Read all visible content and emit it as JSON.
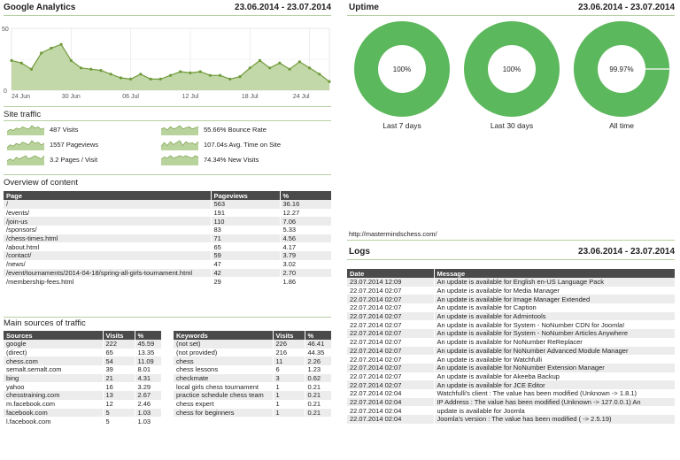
{
  "analytics": {
    "title": "Google Analytics",
    "date_range": "23.06.2014 - 23.07.2014",
    "chart_data": {
      "type": "area",
      "y_ticks": [
        "50",
        "0"
      ],
      "ylim": [
        0,
        50
      ],
      "x_tick_labels": [
        "24 Jun",
        "30 Jun",
        "06 Jul",
        "12 Jul",
        "18 Jul",
        "24 Jul"
      ],
      "series": [
        {
          "values": [
            24,
            22,
            17,
            30,
            34,
            37,
            24,
            18,
            17,
            16,
            13,
            10,
            9,
            13,
            9,
            9,
            12,
            15,
            14,
            15,
            12,
            12,
            9,
            11,
            18,
            24,
            18,
            22,
            17,
            23,
            18,
            13,
            7
          ]
        }
      ]
    },
    "section_site_traffic": "Site traffic",
    "stats": [
      {
        "label": "487 Visits",
        "spark": [
          3,
          5,
          4,
          6,
          5,
          7,
          6,
          5,
          8,
          6,
          7,
          5,
          6
        ]
      },
      {
        "label": "55.66% Bounce Rate",
        "spark": [
          6,
          7,
          5,
          8,
          6,
          7,
          9,
          6,
          7,
          8,
          6,
          7,
          8
        ]
      },
      {
        "label": "1557 Pageviews",
        "spark": [
          2,
          4,
          3,
          5,
          4,
          6,
          5,
          4,
          7,
          5,
          6,
          4,
          5
        ]
      },
      {
        "label": "107.04s Avg. Time on Site",
        "spark": [
          4,
          8,
          5,
          9,
          6,
          8,
          10,
          5,
          9,
          7,
          8,
          6,
          9
        ]
      },
      {
        "label": "3.2 Pages / Visit",
        "spark": [
          3,
          4,
          3,
          5,
          4,
          5,
          6,
          4,
          5,
          6,
          5,
          4,
          6
        ]
      },
      {
        "label": "74.34% New Visits",
        "spark": [
          5,
          7,
          6,
          8,
          6,
          7,
          8,
          7,
          8,
          7,
          6,
          8,
          7
        ]
      }
    ],
    "section_overview": "Overview of content",
    "content_table": {
      "headers": [
        "Page",
        "Pageviews",
        "%"
      ],
      "rows": [
        [
          "/",
          "563",
          "36.16"
        ],
        [
          "/events/",
          "191",
          "12.27"
        ],
        [
          "/join-us",
          "110",
          "7.06"
        ],
        [
          "/sponsors/",
          "83",
          "5.33"
        ],
        [
          "/chess-times.html",
          "71",
          "4.56"
        ],
        [
          "/about.html",
          "65",
          "4.17"
        ],
        [
          "/contact/",
          "59",
          "3.79"
        ],
        [
          "/news/",
          "47",
          "3.02"
        ],
        [
          "/event/tournaments/2014-04-18/spring-all-girls-tournament.html",
          "42",
          "2.70"
        ],
        [
          "/membership-fees.html",
          "29",
          "1.86"
        ]
      ]
    },
    "section_sources": "Main sources of traffic",
    "sources_table": {
      "headers": [
        "Sources",
        "Visits",
        "%"
      ],
      "rows": [
        [
          "google",
          "222",
          "45.59"
        ],
        [
          "(direct)",
          "65",
          "13.35"
        ],
        [
          "chess.com",
          "54",
          "11.09"
        ],
        [
          "semalt.semalt.com",
          "39",
          "8.01"
        ],
        [
          "bing",
          "21",
          "4.31"
        ],
        [
          "yahoo",
          "16",
          "3.29"
        ],
        [
          "chesstraining.com",
          "13",
          "2.67"
        ],
        [
          "m.facebook.com",
          "12",
          "2.46"
        ],
        [
          "facebook.com",
          "5",
          "1.03"
        ],
        [
          "l.facebook.com",
          "5",
          "1.03"
        ]
      ]
    },
    "keywords_table": {
      "headers": [
        "Keywords",
        "Visits",
        "%"
      ],
      "rows": [
        [
          "(not set)",
          "226",
          "46.41"
        ],
        [
          "(not provided)",
          "216",
          "44.35"
        ],
        [
          "chess",
          "11",
          "2.26"
        ],
        [
          "chess lessons",
          "6",
          "1.23"
        ],
        [
          "checkmate",
          "3",
          "0.62"
        ],
        [
          "local girls chess tournament",
          "1",
          "0.21"
        ],
        [
          "practice schedule chess team",
          "1",
          "0.21"
        ],
        [
          "chess expert",
          "1",
          "0.21"
        ],
        [
          "chess for beginners",
          "1",
          "0.21"
        ]
      ]
    }
  },
  "uptime": {
    "title": "Uptime",
    "date_range": "23.06.2014 - 23.07.2014",
    "colors": {
      "up": "#5cb85c",
      "down": "#ffffff"
    },
    "chart_data": {
      "type": "pie",
      "charts": [
        {
          "value": 100,
          "label": "100%",
          "caption": "Last 7 days"
        },
        {
          "value": 100,
          "label": "100%",
          "caption": "Last 30 days"
        },
        {
          "value": 99.97,
          "label": "99.97%",
          "caption": "All time"
        }
      ]
    },
    "url": "http://mastermindschess.com/"
  },
  "logs": {
    "title": "Logs",
    "date_range": "23.06.2014 - 23.07.2014",
    "headers": [
      "Date",
      "Message"
    ],
    "rows": [
      [
        "23.07.2014 12:09",
        "An update is available for English en-US Language Pack"
      ],
      [
        "22.07.2014 02:07",
        "An update is available for Media Manager"
      ],
      [
        "22.07.2014 02:07",
        "An update is available for Image Manager Extended"
      ],
      [
        "22.07.2014 02:07",
        "An update is available for Caption"
      ],
      [
        "22.07.2014 02:07",
        "An update is available for Admintools"
      ],
      [
        "22.07.2014 02:07",
        "An update is available for System - NoNumber CDN for Joomla!"
      ],
      [
        "22.07.2014 02:07",
        "An update is available for System - NoNumber Articles Anywhere"
      ],
      [
        "22.07.2014 02:07",
        "An update is available for NoNumber ReReplacer"
      ],
      [
        "22.07.2014 02:07",
        "An update is available for NoNumber Advanced Module Manager"
      ],
      [
        "22.07.2014 02:07",
        "An update is available for Watchfulli"
      ],
      [
        "22.07.2014 02:07",
        "An update is available for NoNumber Extension Manager"
      ],
      [
        "22.07.2014 02:07",
        "An update is available for Akeeba Backup"
      ],
      [
        "22.07.2014 02:07",
        "An update is available for JCE Editor"
      ],
      [
        "22.07.2014 02:04",
        "Watchfulli's client : The value has been modified (Unknown -> 1.8.1)"
      ],
      [
        "22.07.2014 02:04",
        "IP Address : The value has been modified (Unknown -> 127.0.0.1) An"
      ],
      [
        "22.07.2014 02:04",
        "update is available for Joomla"
      ],
      [
        "22.07.2014 02:04",
        "Joomla's version : The value has been modified ( -> 2.5.19)"
      ]
    ]
  }
}
